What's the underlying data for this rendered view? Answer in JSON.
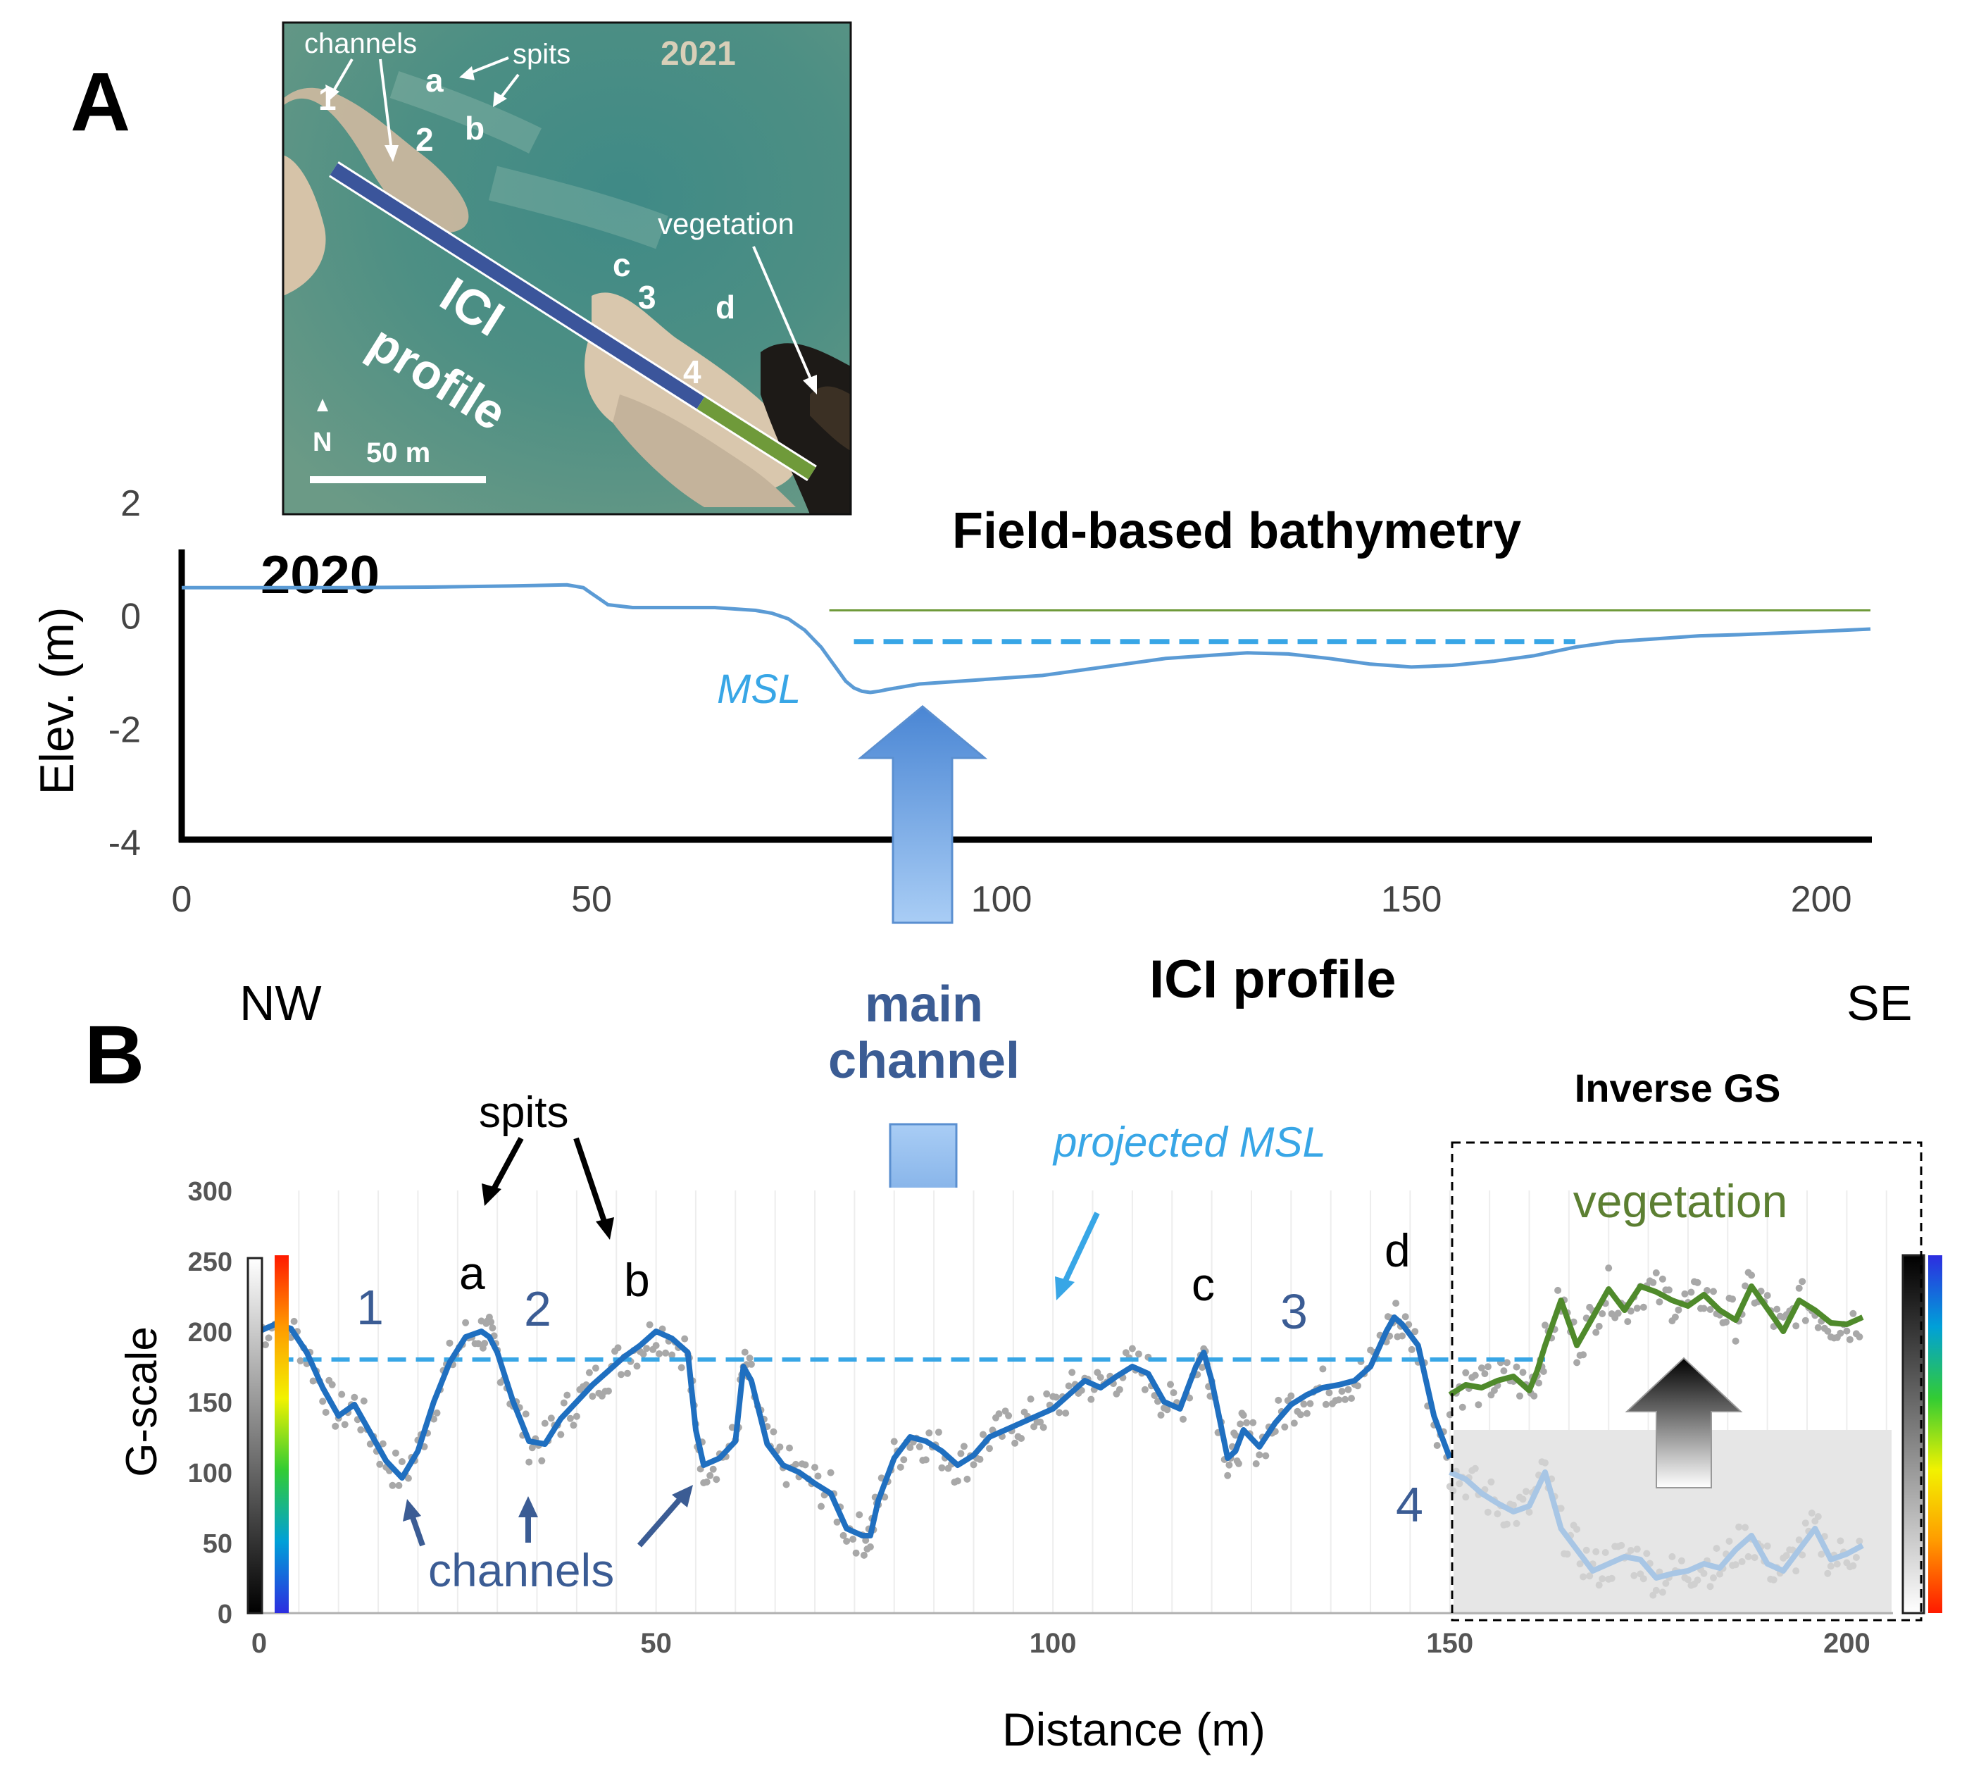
{
  "panel_a": {
    "letter": "A",
    "map": {
      "year": "2021",
      "labels": {
        "channels": "channels",
        "spits": "spits",
        "vegetation": "vegetation",
        "profile_line1": "ICI",
        "profile_line2": "profile",
        "north": "N",
        "scale": "50 m"
      },
      "markers": {
        "ch1": "1",
        "ch2": "2",
        "ch3": "3",
        "ch4": "4",
        "spit_a": "a",
        "spit_b": "b",
        "spit_c": "c",
        "spit_d": "d"
      },
      "colors": {
        "profile_water": "#3b559b",
        "profile_vegetation": "#6f9a3a"
      }
    }
  },
  "panel_b": {
    "letter": "B"
  },
  "chart_data": [
    {
      "type": "line",
      "title": "Field-based bathymetry",
      "year_label": "2020",
      "ylabel": "Elev. (m)",
      "xlim": [
        0,
        206
      ],
      "ylim": [
        -4,
        2
      ],
      "x_ticks": [
        "0",
        "50",
        "100",
        "150",
        "200"
      ],
      "y_ticks": [
        "2",
        "0",
        "-2",
        "-4"
      ],
      "series": [
        {
          "color": "#5b9bd5",
          "x": [
            0,
            10,
            20,
            30,
            40,
            47,
            49,
            50,
            51,
            52,
            55,
            60,
            65,
            70,
            72,
            74,
            76,
            77,
            78,
            79,
            80,
            81,
            82,
            83,
            84,
            85,
            86,
            88,
            90,
            95,
            100,
            105,
            110,
            115,
            120,
            125,
            130,
            135,
            140,
            145,
            150,
            155,
            160,
            165,
            170,
            175,
            180,
            185,
            190,
            195,
            200,
            206
          ],
          "y": [
            0.45,
            0.45,
            0.45,
            0.46,
            0.48,
            0.5,
            0.45,
            0.35,
            0.25,
            0.15,
            0.1,
            0.1,
            0.1,
            0.05,
            0,
            -0.1,
            -0.3,
            -0.45,
            -0.6,
            -0.8,
            -1.0,
            -1.2,
            -1.32,
            -1.38,
            -1.4,
            -1.38,
            -1.35,
            -1.3,
            -1.25,
            -1.2,
            -1.15,
            -1.1,
            -1.0,
            -0.9,
            -0.8,
            -0.75,
            -0.7,
            -0.72,
            -0.8,
            -0.9,
            -0.95,
            -0.92,
            -0.85,
            -0.75,
            -0.6,
            -0.5,
            -0.45,
            -0.4,
            -0.38,
            -0.35,
            -0.32,
            -0.28
          ]
        },
        {
          "color": "#6f9a3a",
          "x": [
            79,
            206
          ],
          "y": [
            0.05,
            0.05
          ]
        }
      ],
      "annotations": {
        "msl_label": "MSL",
        "msl_value": -0.5,
        "msl_x": [
          82,
          170
        ]
      }
    },
    {
      "type": "line",
      "title": "ICI profile",
      "xlabel": "Distance (m)",
      "ylabel": "G-scale",
      "xlim": [
        0,
        206
      ],
      "ylim": [
        0,
        300
      ],
      "x_ticks": [
        "0",
        "50",
        "100",
        "150",
        "200"
      ],
      "y_ticks": [
        "300",
        "250",
        "200",
        "150",
        "100",
        "50",
        "0"
      ],
      "series": [
        {
          "name": "ICI profile",
          "color": "#1f6fc0",
          "x": [
            0,
            2,
            4,
            6,
            8,
            10,
            12,
            14,
            16,
            18,
            20,
            22,
            24,
            26,
            28,
            29,
            30,
            32,
            34,
            36,
            38,
            40,
            42,
            44,
            46,
            48,
            50,
            52,
            54,
            55,
            56,
            58,
            60,
            61,
            62,
            64,
            66,
            68,
            70,
            72,
            74,
            76,
            77,
            78,
            80,
            82,
            84,
            86,
            88,
            90,
            92,
            94,
            96,
            98,
            100,
            102,
            104,
            106,
            108,
            110,
            112,
            114,
            116,
            118,
            119,
            120,
            122,
            123,
            124,
            126,
            128,
            130,
            132,
            134,
            136,
            138,
            140,
            142,
            143,
            144,
            146,
            148,
            150
          ],
          "y": [
            200,
            205,
            202,
            185,
            160,
            140,
            148,
            128,
            108,
            96,
            115,
            150,
            178,
            196,
            200,
            196,
            185,
            150,
            122,
            120,
            138,
            150,
            162,
            172,
            182,
            190,
            200,
            195,
            185,
            130,
            105,
            110,
            122,
            175,
            165,
            120,
            105,
            100,
            92,
            85,
            60,
            55,
            55,
            80,
            110,
            125,
            122,
            115,
            105,
            112,
            125,
            130,
            135,
            140,
            145,
            155,
            165,
            160,
            168,
            175,
            170,
            150,
            145,
            175,
            185,
            165,
            110,
            115,
            130,
            118,
            135,
            148,
            155,
            160,
            162,
            165,
            175,
            200,
            210,
            205,
            190,
            140,
            110
          ]
        },
        {
          "name": "vegetation",
          "color": "#4f8a2b",
          "x": [
            150,
            152,
            154,
            156,
            158,
            160,
            161,
            162,
            164,
            166,
            168,
            170,
            172,
            174,
            176,
            178,
            180,
            182,
            184,
            186,
            188,
            190,
            192,
            194,
            196,
            198,
            200,
            202
          ],
          "y": [
            155,
            162,
            160,
            165,
            168,
            158,
            172,
            190,
            222,
            190,
            210,
            230,
            215,
            232,
            228,
            222,
            218,
            226,
            215,
            208,
            232,
            216,
            200,
            222,
            215,
            206,
            205,
            210
          ]
        },
        {
          "name": "inverse",
          "color": "#a8c6e5",
          "x": [
            150,
            152,
            154,
            156,
            158,
            160,
            162,
            164,
            166,
            168,
            170,
            172,
            174,
            176,
            178,
            180,
            182,
            184,
            186,
            188,
            190,
            192,
            194,
            196,
            198,
            200,
            202
          ],
          "y": [
            100,
            95,
            85,
            78,
            72,
            76,
            100,
            60,
            45,
            30,
            35,
            40,
            38,
            25,
            28,
            30,
            35,
            32,
            45,
            55,
            35,
            30,
            45,
            60,
            38,
            42,
            48
          ]
        }
      ],
      "annotations": {
        "projected_msl_label": "projected MSL",
        "projected_msl_value": 180,
        "main_channel_line1": "main",
        "main_channel_line2": "channel",
        "spits_label": "spits",
        "channels_label": "channels",
        "inverse_gs_label": "Inverse GS",
        "vegetation_label": "vegetation",
        "nw_label": "NW",
        "se_label": "SE",
        "channel_numbers": [
          "1",
          "2",
          "3",
          "4"
        ],
        "spit_letters": [
          "a",
          "b",
          "c",
          "d"
        ]
      }
    }
  ]
}
